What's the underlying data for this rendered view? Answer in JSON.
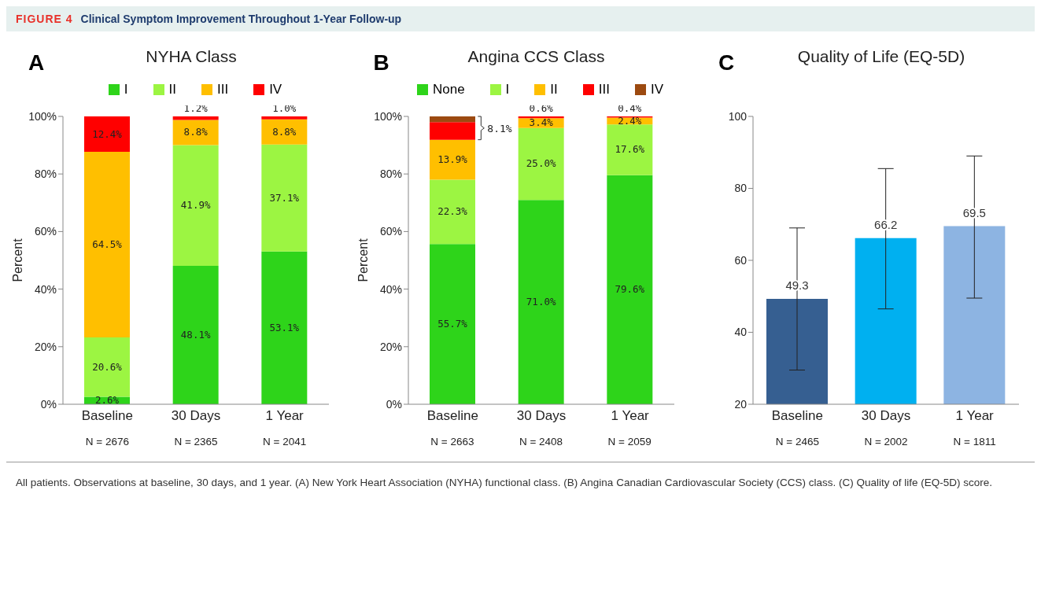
{
  "chart_data": [
    {
      "type": "other",
      "subtitle": "FIGURE 4",
      "title": "Clinical Symptom Improvement Throughout 1-Year Follow-up"
    },
    {
      "type": "bar",
      "stacked": true,
      "title": "NYHA Class",
      "ylabel": "Percent",
      "categories": [
        "Baseline",
        "30 Days",
        "1 Year"
      ],
      "legend": "top",
      "ylim": [
        0,
        100
      ],
      "yticks": [
        {
          "value": 0,
          "label": "0%"
        },
        {
          "value": 20,
          "label": "20%"
        },
        {
          "value": 40,
          "label": "40%"
        },
        {
          "value": 60,
          "label": "60%"
        },
        {
          "value": 80,
          "label": "80%"
        },
        {
          "value": 100,
          "label": "100%"
        }
      ],
      "series": [
        {
          "name": "I",
          "color": "#2ed41a",
          "values": [
            2.6,
            48.1,
            53.1
          ],
          "value_labels": [
            "2.6%",
            "48.1%",
            "53.1%"
          ]
        },
        {
          "name": "II",
          "color": "#9cf542",
          "values": [
            20.6,
            41.9,
            37.1
          ],
          "value_labels": [
            "20.6%",
            "41.9%",
            "37.1%"
          ]
        },
        {
          "name": "III",
          "color": "#ffbf00",
          "values": [
            64.5,
            8.8,
            8.8
          ],
          "value_labels": [
            "64.5%",
            "8.8%",
            "8.8%"
          ]
        },
        {
          "name": "IV",
          "color": "#ff0000",
          "values": [
            12.4,
            1.2,
            1.0
          ],
          "value_labels": [
            "12.4%",
            "1.2%",
            "1.0%"
          ]
        }
      ],
      "annotations": [
        "A",
        "N = 2676",
        "N = 2365",
        "N = 2041"
      ]
    },
    {
      "type": "bar",
      "stacked": true,
      "title": "Angina CCS Class",
      "ylabel": "Percent",
      "categories": [
        "Baseline",
        "30 Days",
        "1 Year"
      ],
      "legend": "top",
      "ylim": [
        0,
        100
      ],
      "yticks": [
        {
          "value": 0,
          "label": "0%"
        },
        {
          "value": 20,
          "label": "20%"
        },
        {
          "value": 40,
          "label": "40%"
        },
        {
          "value": 60,
          "label": "60%"
        },
        {
          "value": 80,
          "label": "80%"
        },
        {
          "value": 100,
          "label": "100%"
        }
      ],
      "series": [
        {
          "name": "None",
          "color": "#2ed41a",
          "values": [
            55.7,
            71.0,
            79.6
          ],
          "value_labels": [
            "55.7%",
            "71.0%",
            "79.6%"
          ]
        },
        {
          "name": "I",
          "color": "#9cf542",
          "values": [
            22.3,
            25.0,
            17.6
          ],
          "value_labels": [
            "22.3%",
            "25.0%",
            "17.6%"
          ]
        },
        {
          "name": "II",
          "color": "#ffbf00",
          "values": [
            13.9,
            3.4,
            2.4
          ],
          "value_labels": [
            "13.9%",
            "3.4%",
            "2.4%"
          ]
        },
        {
          "name": "III",
          "color": "#ff0000",
          "values": [
            6.1,
            0.6,
            0.4
          ],
          "value_labels": [
            null,
            "0.6%",
            "0.4%"
          ]
        },
        {
          "name": "IV",
          "color": "#9c4a10",
          "values": [
            2.0,
            0,
            0
          ],
          "value_labels": [
            null,
            null,
            null
          ]
        }
      ],
      "annotations": [
        "B",
        "N = 2663",
        "N = 2408",
        "N = 2059",
        "8.1%"
      ]
    },
    {
      "type": "bar",
      "title": "Quality of Life (EQ-5D)",
      "categories": [
        "Baseline",
        "30 Days",
        "1 Year"
      ],
      "values": [
        49.3,
        66.2,
        69.5
      ],
      "colors": [
        "#365f91",
        "#00b0f0",
        "#8db4e2"
      ],
      "errors": [
        [
          29.5,
          69
        ],
        [
          46.5,
          85.5
        ],
        [
          49.5,
          89
        ]
      ],
      "data_labels": true,
      "ylim": [
        20,
        100
      ],
      "yticks": [
        20,
        40,
        60,
        80,
        100
      ],
      "annotations": [
        "C",
        "N = 2465",
        "N = 2002",
        "N = 1811"
      ]
    },
    {
      "type": "other",
      "annotations": [
        "All patients. Observations at baseline, 30 days, and 1 year. (A) New York Heart Association (NYHA) functional class. (B) Angina Canadian Cardiovascular Society (CCS) class. (C) Quality of life (EQ-5D) score."
      ]
    }
  ]
}
